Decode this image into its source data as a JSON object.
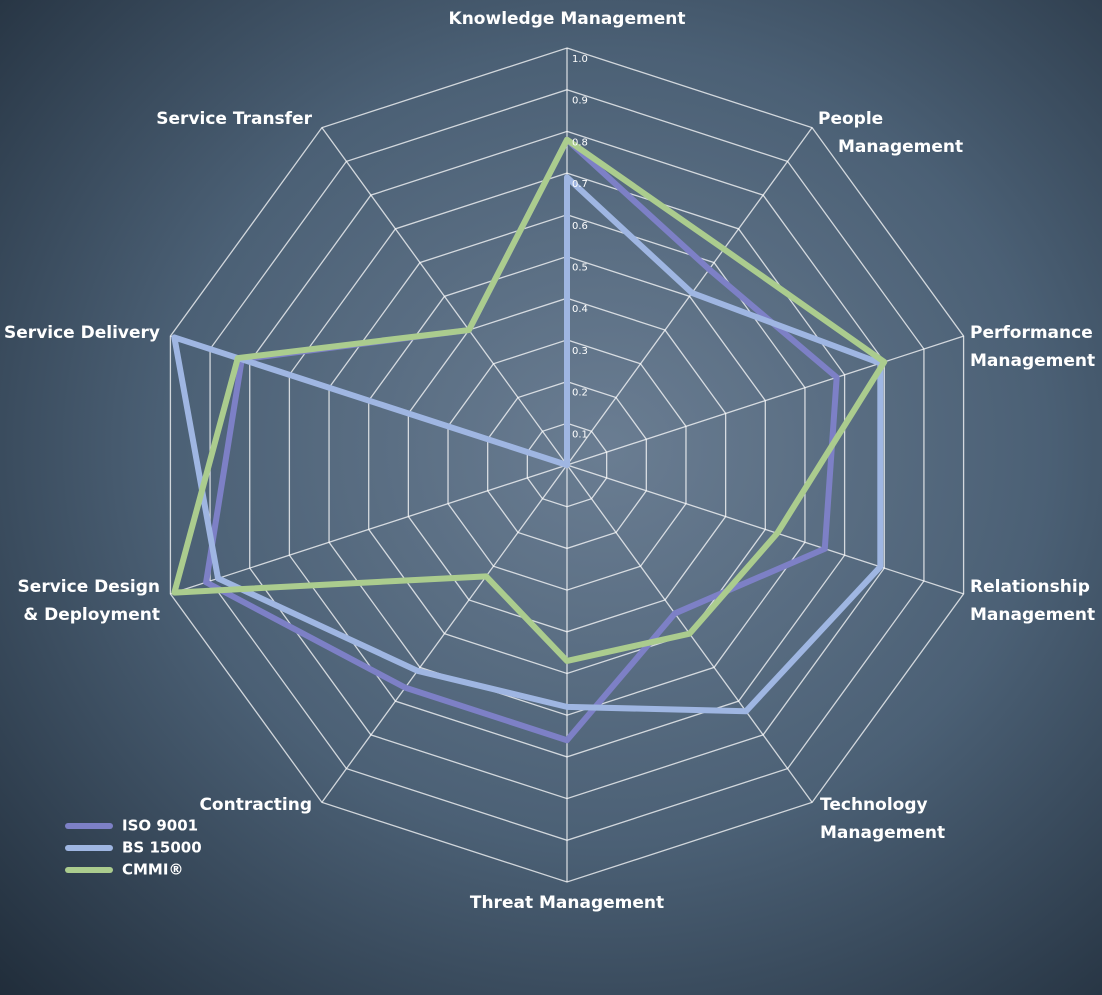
{
  "chart_data": {
    "type": "radar",
    "categories": [
      "Knowledge Management",
      "People\nManagement",
      "Performance\nManagement",
      "Relationship\nManagement",
      "Technology\nManagement",
      "Threat Management",
      "Contracting",
      "Service Design\n& Deployment",
      "Service Delivery",
      "Service Transfer"
    ],
    "series": [
      {
        "name": "ISO 9001",
        "color": "#7d80c6",
        "values": [
          0.78,
          0.58,
          0.68,
          0.65,
          0.44,
          0.66,
          0.66,
          0.91,
          0.82,
          0.4
        ]
      },
      {
        "name": "BS 15000",
        "color": "#9fb6e2",
        "values": [
          0.69,
          0.51,
          0.79,
          0.79,
          0.73,
          0.58,
          0.61,
          0.88,
          0.99,
          0
        ]
      },
      {
        "name": "CMMI®",
        "color": "#abcc8e",
        "values": [
          0.78,
          0.64,
          0.8,
          0.53,
          0.5,
          0.47,
          0.33,
          0.99,
          0.83,
          0.4
        ]
      }
    ],
    "ylim": [
      0,
      1
    ],
    "yticks": [
      0.1,
      0.2,
      0.3,
      0.4,
      0.5,
      0.6,
      0.7,
      0.8,
      0.9,
      {
        "value": 1,
        "label": "1.0"
      }
    ],
    "grid": true
  }
}
